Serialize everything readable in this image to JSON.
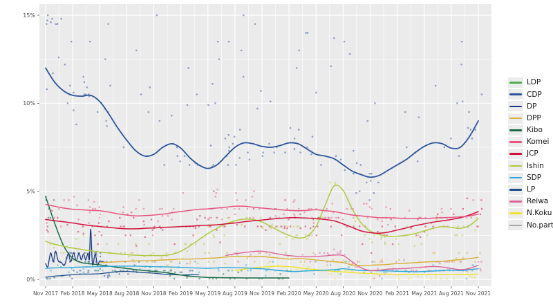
{
  "page": {
    "background": "#ffffff"
  },
  "legend": {
    "position": "right",
    "items": [
      {
        "label": "LDP",
        "color": "#4daf4a"
      },
      {
        "label": "CDP",
        "color": "#2a529b"
      },
      {
        "label": "DP",
        "color": "#16367f"
      },
      {
        "label": "DPP",
        "color": "#d9af37"
      },
      {
        "label": "Kibo",
        "color": "#1a6b45"
      },
      {
        "label": "Komei",
        "color": "#e8537f"
      },
      {
        "label": "JCP",
        "color": "#d0103a"
      },
      {
        "label": "Ishin",
        "color": "#b0c93f"
      },
      {
        "label": "SDP",
        "color": "#2aa7dc"
      },
      {
        "label": "LP",
        "color": "#1d4f8c"
      },
      {
        "label": "Reiwa",
        "color": "#dd6497"
      },
      {
        "label": "N.Koku",
        "color": "#efe32b"
      },
      {
        "label": "No.party",
        "color": "#a6a6a6"
      }
    ]
  },
  "chart_data": {
    "type": "scatter",
    "title": "",
    "xlabel": "",
    "ylabel": "",
    "x_tick_labels": [
      "Nov 2017",
      "Feb 2018",
      "May 2018",
      "Aug 2018",
      "Nov 2018",
      "Feb 2019",
      "May 2019",
      "Aug 2019",
      "Nov 2019",
      "Feb 2020",
      "May 2020",
      "Aug 2020",
      "Nov 2020",
      "Feb 2021",
      "May 2021",
      "Aug 2021",
      "Nov 2021"
    ],
    "y_tick_labels": [
      "0%",
      "5%",
      "10%",
      "15%"
    ],
    "y_tick_percents": [
      0,
      5,
      10,
      15
    ],
    "y_minor_percents": [
      2.5,
      7.5,
      12.5
    ],
    "ylim": [
      0,
      15.6
    ],
    "months_span": 48,
    "grid": true,
    "legend_position": "right",
    "panel_bg": "#ebebeb",
    "grid_color": "#ffffff",
    "axis_text_color": "#4d4d4d",
    "dot_opacity": 0.5,
    "note": "Smoothed trend lines with raw poll scatter. LDP and No.party lie above the visible 15% range, so no line/points are shown for them.",
    "series": [
      {
        "name": "LDP",
        "color": "#4daf4a",
        "line_visible": false
      },
      {
        "name": "No.party",
        "color": "#a6a6a6",
        "line_visible": false
      },
      {
        "name": "CDP",
        "color": "#2a529b",
        "width": 1.8,
        "line_visible": true,
        "start_month": 0,
        "monthly_percent": [
          12.0,
          11.2,
          10.7,
          10.45,
          10.4,
          10.45,
          10.1,
          9.4,
          8.6,
          7.9,
          7.3,
          7.0,
          7.1,
          7.5,
          7.7,
          7.45,
          6.9,
          6.5,
          6.3,
          6.5,
          7.0,
          7.5,
          7.75,
          7.7,
          7.55,
          7.5,
          7.6,
          7.75,
          7.7,
          7.4,
          7.1,
          7.0,
          6.85,
          6.5,
          6.15,
          5.95,
          5.8,
          5.9,
          6.2,
          6.5,
          6.8,
          7.2,
          7.55,
          7.75,
          7.7,
          7.45,
          7.5,
          8.1,
          9.0
        ]
      },
      {
        "name": "Komei",
        "color": "#e8537f",
        "width": 1.5,
        "line_visible": true,
        "start_month": 0,
        "monthly_percent": [
          4.25,
          4.15,
          4.05,
          3.98,
          3.95,
          3.92,
          3.9,
          3.82,
          3.72,
          3.65,
          3.6,
          3.62,
          3.65,
          3.7,
          3.78,
          3.85,
          3.92,
          3.98,
          4.0,
          4.05,
          4.1,
          4.15,
          4.15,
          4.1,
          4.05,
          4.0,
          3.95,
          3.92,
          3.9,
          3.92,
          3.95,
          3.9,
          3.85,
          3.75,
          3.65,
          3.6,
          3.55,
          3.5,
          3.5,
          3.48,
          3.45,
          3.45,
          3.45,
          3.48,
          3.5,
          3.52,
          3.55,
          3.6,
          3.7
        ]
      },
      {
        "name": "JCP",
        "color": "#d0103a",
        "width": 1.5,
        "line_visible": true,
        "start_month": 0,
        "monthly_percent": [
          3.4,
          3.33,
          3.27,
          3.2,
          3.12,
          3.05,
          3.0,
          2.95,
          2.9,
          2.87,
          2.87,
          2.9,
          2.92,
          2.95,
          2.97,
          3.0,
          3.02,
          3.05,
          3.07,
          3.1,
          3.15,
          3.2,
          3.27,
          3.32,
          3.37,
          3.42,
          3.46,
          3.5,
          3.5,
          3.48,
          3.45,
          3.4,
          3.32,
          3.15,
          2.95,
          2.75,
          2.65,
          2.62,
          2.68,
          2.8,
          2.92,
          3.05,
          3.15,
          3.25,
          3.32,
          3.4,
          3.5,
          3.65,
          3.85
        ]
      },
      {
        "name": "Ishin",
        "color": "#b0c93f",
        "width": 1.5,
        "line_visible": true,
        "start_month": 0,
        "monthly_percent": [
          2.15,
          2.0,
          1.88,
          1.78,
          1.7,
          1.62,
          1.55,
          1.5,
          1.45,
          1.4,
          1.37,
          1.35,
          1.35,
          1.35,
          1.42,
          1.6,
          1.9,
          2.25,
          2.6,
          2.9,
          3.15,
          3.32,
          3.42,
          3.4,
          3.25,
          3.0,
          2.72,
          2.5,
          2.35,
          2.45,
          3.0,
          4.2,
          5.3,
          5.05,
          4.0,
          3.2,
          2.75,
          2.55,
          2.45,
          2.45,
          2.5,
          2.6,
          2.75,
          2.9,
          3.0,
          2.95,
          2.9,
          3.05,
          3.45
        ]
      },
      {
        "name": "Kibo",
        "color": "#1a6b45",
        "width": 1.5,
        "line_visible": true,
        "start_month": 0,
        "monthly_percent": [
          4.7,
          3.2,
          1.9,
          1.2,
          0.95,
          0.88,
          0.82,
          0.75,
          0.68,
          0.62,
          0.55,
          0.5,
          0.45,
          0.4,
          0.33,
          0.25,
          0.18,
          0.14,
          0.11,
          0.1,
          0.09,
          0.09,
          0.08,
          0.08,
          0.08,
          0.08,
          0.08,
          0.08
        ]
      },
      {
        "name": "DPP",
        "color": "#d9af37",
        "width": 1.4,
        "line_visible": true,
        "start_month": 6,
        "monthly_percent": [
          0.95,
          0.97,
          1.0,
          1.02,
          1.05,
          1.05,
          1.07,
          1.1,
          1.12,
          1.15,
          1.15,
          1.17,
          1.2,
          1.22,
          1.27,
          1.3,
          1.3,
          1.28,
          1.3,
          1.25,
          1.2,
          1.15,
          1.18,
          1.15,
          1.1,
          1.05,
          1.0,
          0.95,
          0.82,
          0.78,
          0.8,
          0.82,
          0.85,
          0.9,
          0.92,
          0.95,
          0.98,
          1.0,
          1.02,
          1.08,
          1.12,
          1.18,
          1.25
        ]
      },
      {
        "name": "SDP",
        "color": "#2aa7dc",
        "width": 1.4,
        "line_visible": true,
        "start_month": 0,
        "monthly_percent": [
          0.63,
          0.65,
          0.66,
          0.68,
          0.7,
          0.71,
          0.72,
          0.74,
          0.75,
          0.75,
          0.75,
          0.74,
          0.72,
          0.71,
          0.7,
          0.68,
          0.66,
          0.64,
          0.63,
          0.65,
          0.68,
          0.66,
          0.65,
          0.62,
          0.6,
          0.55,
          0.5,
          0.45,
          0.45,
          0.48,
          0.5,
          0.52,
          0.55,
          0.6,
          0.55,
          0.5,
          0.5,
          0.49,
          0.48,
          0.46,
          0.45,
          0.43,
          0.45,
          0.47,
          0.5,
          0.52,
          0.5,
          0.55,
          0.6
        ]
      },
      {
        "name": "Reiwa",
        "color": "#dd6497",
        "width": 1.4,
        "line_visible": true,
        "start_month": 20,
        "monthly_percent": [
          1.35,
          1.45,
          1.52,
          1.58,
          1.6,
          1.52,
          1.42,
          1.35,
          1.3,
          1.28,
          1.3,
          1.33,
          1.38,
          1.35,
          1.0,
          0.65,
          0.5,
          0.52,
          0.58,
          0.6,
          0.62,
          0.66,
          0.7,
          0.73,
          0.7,
          0.62,
          0.55,
          0.62,
          0.8
        ]
      },
      {
        "name": "N.Koku",
        "color": "#efe32b",
        "width": 1.4,
        "line_visible": true,
        "start_month": 21,
        "monthly_percent": [
          0.5,
          0.58,
          0.65,
          0.7,
          0.73,
          0.75,
          0.72,
          0.68,
          0.6,
          0.55,
          0.5,
          0.45,
          0.42,
          0.38,
          0.35,
          0.33,
          0.3,
          0.3,
          0.28,
          0.28,
          0.27,
          0.27,
          0.28,
          0.28,
          0.27,
          0.28,
          0.28,
          0.3
        ]
      },
      {
        "name": "DP",
        "color": "#16367f",
        "width": 1.3,
        "line_visible": true,
        "points_month_percent": [
          [
            0.0,
            0.9
          ],
          [
            0.25,
            0.72
          ],
          [
            0.55,
            1.5
          ],
          [
            0.85,
            1.0
          ],
          [
            1.1,
            1.6
          ],
          [
            1.4,
            1.05
          ],
          [
            1.75,
            0.95
          ],
          [
            2.1,
            0.82
          ],
          [
            2.5,
            1.45
          ],
          [
            2.8,
            1.0
          ],
          [
            3.1,
            1.5
          ],
          [
            3.4,
            1.05
          ],
          [
            3.7,
            1.5
          ],
          [
            3.95,
            1.1
          ],
          [
            4.2,
            1.45
          ],
          [
            4.45,
            1.1
          ],
          [
            4.7,
            1.5
          ],
          [
            4.85,
            1.15
          ],
          [
            5.0,
            2.85
          ],
          [
            5.2,
            0.85
          ],
          [
            5.5,
            1.45
          ],
          [
            5.75,
            0.8
          ],
          [
            6.0,
            1.05
          ],
          [
            6.4,
            0.95
          ]
        ]
      },
      {
        "name": "LP",
        "color": "#1d4f8c",
        "width": 1.3,
        "line_visible": true,
        "points_month_percent": [
          [
            0,
            0.12
          ],
          [
            1,
            0.18
          ],
          [
            2,
            0.22
          ],
          [
            3,
            0.27
          ],
          [
            4,
            0.3
          ],
          [
            5,
            0.3
          ],
          [
            6,
            0.32
          ],
          [
            7,
            0.38
          ],
          [
            8,
            0.44
          ],
          [
            9,
            0.45
          ],
          [
            10,
            0.42
          ],
          [
            11,
            0.38
          ],
          [
            12,
            0.35
          ],
          [
            13,
            0.3
          ],
          [
            14,
            0.27
          ],
          [
            15,
            0.25
          ],
          [
            16,
            0.26
          ],
          [
            17,
            0.27
          ]
        ]
      }
    ],
    "scatter_clusters": [
      {
        "series": "CDP",
        "from": 0,
        "to": 48.5,
        "count": 85,
        "spread": 1.6,
        "seed": 11
      },
      {
        "series": "CDP",
        "from": 0,
        "to": 48.5,
        "count": 55,
        "uniform": [
          8.8,
          15.1
        ],
        "seed": 12
      },
      {
        "series": "CDP",
        "from": 0,
        "to": 2,
        "count": 8,
        "uniform": [
          14.5,
          15.0
        ],
        "seed": 13
      },
      {
        "series": "Komei",
        "from": 0,
        "to": 48.5,
        "count": 125,
        "spread": 1.3,
        "seed": 21
      },
      {
        "series": "JCP",
        "from": 0,
        "to": 48.5,
        "count": 125,
        "spread": 1.15,
        "seed": 22
      },
      {
        "series": "Ishin",
        "from": 0,
        "to": 48.5,
        "count": 100,
        "spread": 0.9,
        "seed": 23
      },
      {
        "series": "DPP",
        "from": 6,
        "to": 48.5,
        "count": 80,
        "spread": 0.55,
        "seed": 24
      },
      {
        "series": "SDP",
        "from": 0,
        "to": 48.5,
        "count": 95,
        "spread": 0.4,
        "seed": 25
      },
      {
        "series": "Reiwa",
        "from": 20,
        "to": 48.5,
        "count": 60,
        "spread": 0.55,
        "seed": 26
      },
      {
        "series": "N.Koku",
        "from": 21,
        "to": 48.5,
        "count": 55,
        "spread": 0.3,
        "seed": 27
      },
      {
        "series": "Kibo",
        "from": 0,
        "to": 27,
        "count": 45,
        "spread": 0.55,
        "seed": 28
      },
      {
        "series": "Kibo",
        "from": 0,
        "to": 1.5,
        "count": 5,
        "uniform": [
          3.0,
          5.0
        ],
        "seed": 29
      },
      {
        "series": "DP",
        "from": 0,
        "to": 6.5,
        "count": 26,
        "spread": 0.5,
        "seed": 30
      },
      {
        "series": "LP",
        "from": 0,
        "to": 17,
        "count": 38,
        "spread": 0.28,
        "seed": 31
      }
    ]
  }
}
